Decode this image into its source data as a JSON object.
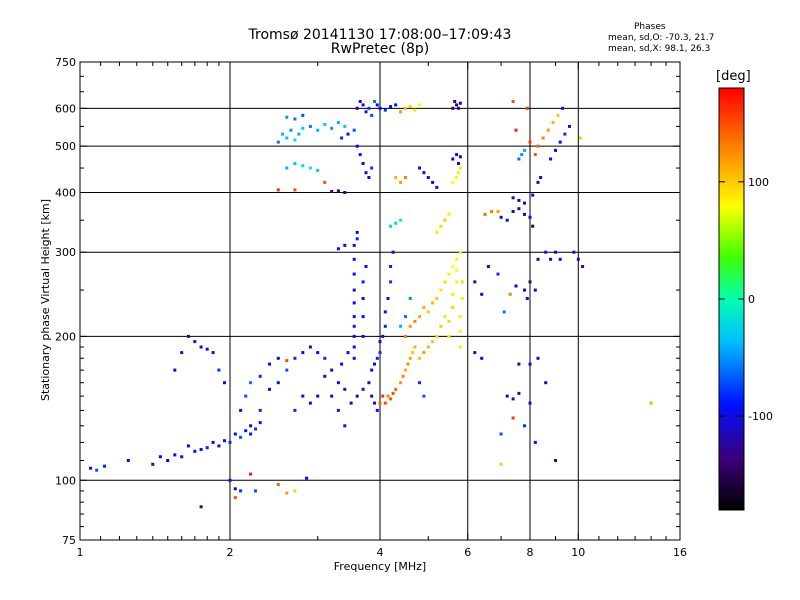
{
  "header": {
    "title": "Tromsø 20141130 17:08:00–17:09:43",
    "subtitle": "RwPretec (8p)",
    "phases_label": "Phases",
    "phases_o": "mean, sd,O: -70.3, 21.7",
    "phases_x": "mean, sd,X:  98.1, 26.3"
  },
  "colorbar": {
    "unit": "[deg]",
    "min": -180,
    "max": 180,
    "ticks": [
      {
        "value": 100,
        "label": "100"
      },
      {
        "value": 0,
        "label": "0"
      },
      {
        "value": -100,
        "label": "-100"
      }
    ]
  },
  "chart_data": {
    "type": "scatter",
    "title": "Tromsø 20141130 17:08:00–17:09:43",
    "subtitle": "RwPretec (8p)",
    "xlabel": "Frequency [MHz]",
    "ylabel": "Stationary phase Virtual Height [km]",
    "xscale": "log",
    "yscale": "log",
    "xlim": [
      1,
      16
    ],
    "ylim": [
      75,
      750
    ],
    "xticks": [
      {
        "v": 1,
        "l": "1"
      },
      {
        "v": 2,
        "l": "2"
      },
      {
        "v": 4,
        "l": "4"
      },
      {
        "v": 6,
        "l": "6"
      },
      {
        "v": 8,
        "l": "8"
      },
      {
        "v": 10,
        "l": "10"
      },
      {
        "v": 16,
        "l": "16"
      }
    ],
    "yticks": [
      {
        "v": 75,
        "l": "75"
      },
      {
        "v": 100,
        "l": "100"
      },
      {
        "v": 200,
        "l": "200"
      },
      {
        "v": 300,
        "l": "300"
      },
      {
        "v": 400,
        "l": "400"
      },
      {
        "v": 500,
        "l": "500"
      },
      {
        "v": 600,
        "l": "600"
      },
      {
        "v": 750,
        "l": "750"
      }
    ],
    "gridx": [
      2,
      4,
      6,
      8,
      10
    ],
    "gridy": [
      100,
      200,
      300,
      400,
      500,
      600
    ],
    "grid": true,
    "color_quantity": "phase [deg]",
    "points": [
      [
        1.05,
        106,
        -95
      ],
      [
        1.08,
        105,
        -70
      ],
      [
        1.12,
        107,
        -85
      ],
      [
        1.25,
        110,
        -100
      ],
      [
        1.4,
        108,
        -110
      ],
      [
        1.45,
        112,
        -95
      ],
      [
        1.5,
        110,
        -120
      ],
      [
        1.55,
        113,
        -100
      ],
      [
        1.6,
        112,
        -90
      ],
      [
        1.65,
        118,
        -110
      ],
      [
        1.7,
        115,
        -105
      ],
      [
        1.75,
        116,
        -95
      ],
      [
        1.8,
        117,
        -85
      ],
      [
        1.85,
        120,
        -100
      ],
      [
        1.9,
        118,
        -110
      ],
      [
        1.95,
        121,
        -95
      ],
      [
        2.0,
        120,
        -80
      ],
      [
        2.05,
        125,
        -100
      ],
      [
        2.1,
        123,
        -70
      ],
      [
        2.15,
        127,
        -90
      ],
      [
        2.2,
        130,
        -110
      ],
      [
        2.25,
        128,
        -80
      ],
      [
        2.3,
        132,
        -100
      ],
      [
        1.55,
        170,
        -120
      ],
      [
        1.6,
        185,
        -100
      ],
      [
        1.65,
        200,
        -130
      ],
      [
        1.7,
        195,
        -110
      ],
      [
        1.75,
        190,
        -100
      ],
      [
        1.8,
        188,
        -90
      ],
      [
        1.85,
        185,
        -95
      ],
      [
        1.9,
        170,
        -80
      ],
      [
        1.95,
        160,
        -100
      ],
      [
        2.0,
        100,
        -90
      ],
      [
        2.05,
        96,
        -110
      ],
      [
        2.1,
        95,
        -80
      ],
      [
        2.25,
        95,
        -70
      ],
      [
        2.5,
        98,
        140
      ],
      [
        2.6,
        94,
        120
      ],
      [
        2.7,
        95,
        60
      ],
      [
        2.85,
        101,
        -90
      ],
      [
        2.2,
        103,
        170
      ],
      [
        2.05,
        92,
        150
      ],
      [
        1.75,
        88,
        -140
      ],
      [
        2.1,
        140,
        -90
      ],
      [
        2.15,
        150,
        -70
      ],
      [
        2.2,
        160,
        -60
      ],
      [
        2.3,
        165,
        -80
      ],
      [
        2.4,
        175,
        -90
      ],
      [
        2.5,
        180,
        -100
      ],
      [
        2.6,
        178,
        150
      ],
      [
        2.7,
        180,
        -80
      ],
      [
        2.8,
        185,
        -100
      ],
      [
        2.9,
        190,
        -110
      ],
      [
        3.0,
        185,
        -90
      ],
      [
        3.1,
        180,
        -80
      ],
      [
        2.6,
        170,
        -70
      ],
      [
        2.4,
        155,
        -100
      ],
      [
        2.3,
        140,
        -80
      ],
      [
        2.2,
        125,
        -95
      ],
      [
        2.5,
        160,
        -90
      ],
      [
        2.7,
        140,
        -80
      ],
      [
        2.8,
        150,
        -100
      ],
      [
        2.9,
        145,
        -90
      ],
      [
        3.0,
        150,
        -110
      ],
      [
        3.1,
        165,
        -95
      ],
      [
        3.2,
        150,
        -100
      ],
      [
        3.3,
        160,
        -90
      ],
      [
        3.4,
        155,
        -110
      ],
      [
        3.5,
        145,
        -120
      ],
      [
        3.6,
        150,
        -115
      ],
      [
        3.7,
        155,
        -100
      ],
      [
        3.3,
        140,
        -85
      ],
      [
        3.4,
        130,
        -90
      ],
      [
        3.2,
        170,
        -105
      ],
      [
        3.35,
        175,
        -95
      ],
      [
        3.45,
        185,
        -100
      ],
      [
        3.55,
        180,
        -90
      ],
      [
        3.55,
        190,
        -95
      ],
      [
        3.55,
        200,
        -100
      ],
      [
        3.55,
        210,
        -85
      ],
      [
        3.55,
        220,
        -95
      ],
      [
        3.55,
        235,
        -90
      ],
      [
        3.55,
        250,
        -105
      ],
      [
        3.55,
        270,
        -95
      ],
      [
        3.55,
        290,
        -100
      ],
      [
        3.55,
        310,
        -90
      ],
      [
        3.6,
        320,
        -85
      ],
      [
        3.3,
        305,
        -100
      ],
      [
        3.4,
        310,
        -95
      ],
      [
        3.6,
        330,
        -90
      ],
      [
        3.7,
        200,
        -95
      ],
      [
        3.7,
        220,
        -90
      ],
      [
        3.7,
        240,
        -100
      ],
      [
        3.7,
        260,
        -85
      ],
      [
        3.75,
        280,
        -95
      ],
      [
        3.8,
        160,
        -110
      ],
      [
        3.85,
        170,
        -100
      ],
      [
        3.9,
        175,
        -90
      ],
      [
        3.95,
        180,
        -85
      ],
      [
        4.0,
        185,
        -80
      ],
      [
        4.0,
        195,
        -90
      ],
      [
        4.05,
        200,
        -100
      ],
      [
        4.1,
        210,
        -85
      ],
      [
        4.1,
        225,
        -90
      ],
      [
        4.15,
        240,
        -95
      ],
      [
        4.2,
        260,
        -80
      ],
      [
        4.2,
        280,
        -85
      ],
      [
        4.25,
        300,
        -90
      ],
      [
        3.85,
        150,
        -115
      ],
      [
        3.9,
        145,
        -100
      ],
      [
        3.95,
        140,
        -90
      ],
      [
        4.0,
        145,
        140
      ],
      [
        4.05,
        150,
        160
      ],
      [
        4.1,
        145,
        150
      ],
      [
        4.15,
        150,
        130
      ],
      [
        4.2,
        148,
        145
      ],
      [
        4.25,
        152,
        150
      ],
      [
        4.3,
        155,
        140
      ],
      [
        4.4,
        160,
        120
      ],
      [
        4.45,
        165,
        130
      ],
      [
        4.5,
        170,
        110
      ],
      [
        4.55,
        175,
        125
      ],
      [
        4.6,
        180,
        115
      ],
      [
        4.65,
        185,
        100
      ],
      [
        4.7,
        190,
        110
      ],
      [
        4.8,
        180,
        105
      ],
      [
        4.9,
        185,
        120
      ],
      [
        5.0,
        190,
        110
      ],
      [
        5.1,
        195,
        100
      ],
      [
        5.2,
        200,
        95
      ],
      [
        5.3,
        210,
        100
      ],
      [
        5.4,
        220,
        90
      ],
      [
        4.5,
        200,
        130
      ],
      [
        4.6,
        210,
        120
      ],
      [
        4.7,
        215,
        125
      ],
      [
        4.8,
        220,
        110
      ],
      [
        4.9,
        230,
        115
      ],
      [
        5.0,
        225,
        100
      ],
      [
        5.1,
        235,
        110
      ],
      [
        5.2,
        240,
        100
      ],
      [
        5.3,
        250,
        90
      ],
      [
        5.4,
        260,
        95
      ],
      [
        5.5,
        270,
        85
      ],
      [
        5.6,
        280,
        80
      ],
      [
        5.7,
        290,
        75
      ],
      [
        5.8,
        300,
        70
      ],
      [
        5.5,
        200,
        90
      ],
      [
        5.5,
        215,
        95
      ],
      [
        5.6,
        230,
        100
      ],
      [
        5.6,
        245,
        90
      ],
      [
        5.7,
        260,
        85
      ],
      [
        5.7,
        275,
        80
      ],
      [
        5.8,
        190,
        85
      ],
      [
        5.8,
        205,
        80
      ],
      [
        5.8,
        220,
        75
      ],
      [
        5.85,
        240,
        70
      ],
      [
        5.85,
        260,
        65
      ],
      [
        4.8,
        160,
        -80
      ],
      [
        4.9,
        150,
        -70
      ],
      [
        4.4,
        210,
        -40
      ],
      [
        4.5,
        220,
        -60
      ],
      [
        4.6,
        240,
        -50
      ],
      [
        5.6,
        420,
        80
      ],
      [
        5.7,
        430,
        75
      ],
      [
        5.75,
        440,
        85
      ],
      [
        5.8,
        450,
        90
      ],
      [
        5.2,
        330,
        90
      ],
      [
        5.3,
        340,
        95
      ],
      [
        5.4,
        350,
        100
      ],
      [
        5.5,
        360,
        85
      ],
      [
        4.2,
        340,
        -20
      ],
      [
        4.3,
        345,
        -30
      ],
      [
        4.4,
        350,
        -10
      ],
      [
        2.5,
        510,
        -60
      ],
      [
        2.55,
        530,
        -40
      ],
      [
        2.6,
        520,
        -30
      ],
      [
        2.65,
        540,
        -50
      ],
      [
        2.7,
        515,
        -20
      ],
      [
        2.75,
        530,
        -40
      ],
      [
        2.8,
        545,
        -30
      ],
      [
        2.9,
        550,
        -60
      ],
      [
        3.0,
        540,
        -40
      ],
      [
        3.1,
        555,
        -30
      ],
      [
        3.2,
        545,
        -50
      ],
      [
        3.3,
        560,
        -40
      ],
      [
        3.4,
        550,
        -30
      ],
      [
        3.35,
        520,
        -80
      ],
      [
        3.45,
        530,
        -90
      ],
      [
        3.55,
        540,
        -70
      ],
      [
        3.6,
        500,
        -100
      ],
      [
        3.65,
        480,
        -90
      ],
      [
        3.7,
        460,
        -110
      ],
      [
        3.75,
        440,
        -100
      ],
      [
        3.8,
        430,
        -90
      ],
      [
        3.85,
        450,
        -80
      ],
      [
        3.6,
        600,
        -120
      ],
      [
        3.65,
        620,
        -110
      ],
      [
        3.7,
        610,
        -100
      ],
      [
        3.75,
        590,
        -90
      ],
      [
        3.8,
        600,
        -80
      ],
      [
        3.85,
        580,
        -70
      ],
      [
        3.9,
        620,
        -60
      ],
      [
        3.95,
        610,
        -90
      ],
      [
        4.0,
        600,
        -100
      ],
      [
        4.1,
        595,
        -80
      ],
      [
        4.2,
        605,
        -110
      ],
      [
        4.3,
        610,
        -90
      ],
      [
        4.4,
        590,
        120
      ],
      [
        4.5,
        600,
        110
      ],
      [
        4.6,
        605,
        100
      ],
      [
        4.7,
        595,
        90
      ],
      [
        4.8,
        610,
        80
      ],
      [
        5.6,
        600,
        -130
      ],
      [
        5.65,
        620,
        -120
      ],
      [
        5.7,
        610,
        -140
      ],
      [
        5.75,
        600,
        -110
      ],
      [
        5.8,
        615,
        -120
      ],
      [
        5.6,
        470,
        -110
      ],
      [
        5.7,
        480,
        -100
      ],
      [
        5.8,
        475,
        -120
      ],
      [
        5.75,
        460,
        -90
      ],
      [
        4.8,
        450,
        -100
      ],
      [
        4.9,
        440,
        -110
      ],
      [
        5.0,
        430,
        -90
      ],
      [
        5.1,
        420,
        -100
      ],
      [
        5.2,
        410,
        -95
      ],
      [
        4.3,
        430,
        110
      ],
      [
        4.4,
        420,
        120
      ],
      [
        4.5,
        430,
        130
      ],
      [
        2.6,
        450,
        -40
      ],
      [
        2.7,
        460,
        -30
      ],
      [
        2.8,
        455,
        -20
      ],
      [
        2.9,
        450,
        -10
      ],
      [
        3.0,
        445,
        -30
      ],
      [
        2.5,
        405,
        160
      ],
      [
        2.7,
        405,
        150
      ],
      [
        3.2,
        402,
        -130
      ],
      [
        3.3,
        403,
        -140
      ],
      [
        3.4,
        400,
        -120
      ],
      [
        2.6,
        575,
        -50
      ],
      [
        2.7,
        570,
        -60
      ],
      [
        2.8,
        580,
        -70
      ],
      [
        3.1,
        420,
        150
      ],
      [
        6.5,
        360,
        140
      ],
      [
        6.7,
        365,
        130
      ],
      [
        6.9,
        365,
        120
      ],
      [
        7.0,
        355,
        -110
      ],
      [
        7.2,
        350,
        -100
      ],
      [
        7.4,
        365,
        -120
      ],
      [
        7.6,
        370,
        -110
      ],
      [
        7.8,
        360,
        -100
      ],
      [
        8.0,
        355,
        -90
      ],
      [
        7.4,
        390,
        -120
      ],
      [
        7.6,
        385,
        -130
      ],
      [
        7.8,
        380,
        -110
      ],
      [
        8.1,
        395,
        -100
      ],
      [
        8.3,
        420,
        -120
      ],
      [
        8.4,
        430,
        -110
      ],
      [
        8.2,
        480,
        150
      ],
      [
        8.3,
        500,
        140
      ],
      [
        8.5,
        520,
        130
      ],
      [
        8.7,
        540,
        120
      ],
      [
        8.9,
        560,
        110
      ],
      [
        9.1,
        580,
        100
      ],
      [
        9.3,
        600,
        -90
      ],
      [
        7.6,
        470,
        -60
      ],
      [
        7.7,
        480,
        -50
      ],
      [
        7.8,
        490,
        -40
      ],
      [
        8.0,
        510,
        160
      ],
      [
        7.5,
        540,
        170
      ],
      [
        7.4,
        620,
        150
      ],
      [
        7.9,
        600,
        160
      ],
      [
        8.8,
        470,
        -100
      ],
      [
        9.0,
        490,
        -90
      ],
      [
        9.2,
        510,
        -110
      ],
      [
        9.4,
        530,
        -80
      ],
      [
        9.6,
        550,
        -100
      ],
      [
        10.1,
        520,
        100
      ],
      [
        8.1,
        340,
        -150
      ],
      [
        8.3,
        290,
        -120
      ],
      [
        8.0,
        260,
        -130
      ],
      [
        8.2,
        250,
        -110
      ],
      [
        8.6,
        300,
        -100
      ],
      [
        8.8,
        290,
        -110
      ],
      [
        9.0,
        300,
        -120
      ],
      [
        9.2,
        290,
        -100
      ],
      [
        10.0,
        290,
        -130
      ],
      [
        10.2,
        280,
        -120
      ],
      [
        9.8,
        300,
        -90
      ],
      [
        6.2,
        260,
        -100
      ],
      [
        6.4,
        245,
        -90
      ],
      [
        6.6,
        280,
        -110
      ],
      [
        6.9,
        270,
        -80
      ],
      [
        7.1,
        225,
        -60
      ],
      [
        7.3,
        245,
        130
      ],
      [
        7.5,
        255,
        -100
      ],
      [
        7.8,
        250,
        -110
      ],
      [
        7.9,
        240,
        -100
      ],
      [
        6.2,
        185,
        -100
      ],
      [
        6.4,
        180,
        -90
      ],
      [
        7.6,
        175,
        -120
      ],
      [
        8.0,
        175,
        -110
      ],
      [
        8.3,
        180,
        -110
      ],
      [
        8.6,
        160,
        -120
      ],
      [
        7.2,
        150,
        -120
      ],
      [
        7.4,
        148,
        -130
      ],
      [
        7.6,
        152,
        -110
      ],
      [
        8.0,
        145,
        -100
      ],
      [
        7.8,
        130,
        -80
      ],
      [
        8.2,
        120,
        -90
      ],
      [
        7.0,
        125,
        -70
      ],
      [
        7.4,
        135,
        160
      ],
      [
        7.0,
        108,
        100
      ],
      [
        9.0,
        110,
        -130
      ],
      [
        14.0,
        145,
        110
      ]
    ]
  }
}
